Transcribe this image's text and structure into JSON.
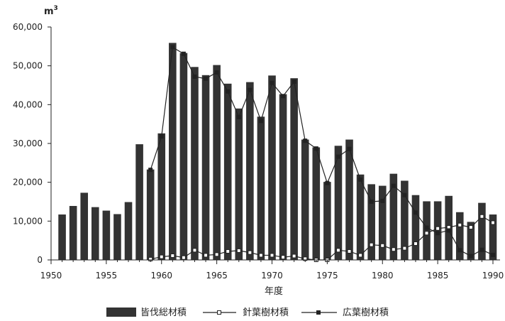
{
  "chart_data": {
    "type": "bar",
    "unit_label": "m",
    "unit_superscript": "3",
    "xlabel": "年度",
    "ylabel": "",
    "xlim": [
      1950,
      1990
    ],
    "ylim": [
      0,
      60000
    ],
    "x_ticks": [
      1950,
      1955,
      1960,
      1965,
      1970,
      1975,
      1980,
      1985,
      1990
    ],
    "y_ticks": [
      0,
      10000,
      20000,
      30000,
      40000,
      50000,
      60000
    ],
    "y_tick_labels": [
      "0",
      "10,000",
      "20,000",
      "30,000",
      "40,000",
      "50,000",
      "60,000"
    ],
    "legend_position": "bottom",
    "colors": {
      "bar": "#333333",
      "line": "#222222",
      "open_marker_fill": "#ffffff",
      "filled_marker_fill": "#222222"
    },
    "series": [
      {
        "name": "皆伐総材積",
        "kind": "bar",
        "x": [
          1951,
          1952,
          1953,
          1954,
          1955,
          1956,
          1957,
          1958,
          1959,
          1960,
          1961,
          1962,
          1963,
          1964,
          1965,
          1966,
          1967,
          1968,
          1969,
          1970,
          1971,
          1972,
          1973,
          1974,
          1975,
          1976,
          1977,
          1978,
          1979,
          1980,
          1981,
          1982,
          1983,
          1984,
          1985,
          1986,
          1987,
          1988,
          1989,
          1990
        ],
        "values": [
          11700,
          13900,
          17300,
          13600,
          12700,
          11800,
          14900,
          29800,
          23300,
          32600,
          55900,
          53300,
          49700,
          47600,
          50200,
          45400,
          39000,
          45800,
          36900,
          47500,
          42700,
          46800,
          31000,
          29000,
          20100,
          29400,
          31000,
          22000,
          19500,
          19100,
          22200,
          20400,
          16700,
          15100,
          15100,
          16500,
          12300,
          9800,
          14700,
          11700
        ]
      },
      {
        "name": "針葉樹材積",
        "kind": "line",
        "marker": "open-square",
        "x": [
          1959,
          1960,
          1961,
          1962,
          1963,
          1964,
          1965,
          1966,
          1967,
          1968,
          1969,
          1970,
          1971,
          1972,
          1973,
          1974,
          1975,
          1976,
          1977,
          1978,
          1979,
          1980,
          1981,
          1982,
          1983,
          1984,
          1985,
          1986,
          1987,
          1988,
          1989,
          1990
        ],
        "values": [
          200,
          800,
          1100,
          600,
          2500,
          1200,
          1400,
          2200,
          2400,
          1900,
          1200,
          1200,
          700,
          1000,
          300,
          0,
          0,
          2500,
          2200,
          1200,
          3900,
          3700,
          2700,
          3000,
          4200,
          6900,
          8100,
          8400,
          9000,
          8400,
          11200,
          9600
        ]
      },
      {
        "name": "広葉樹材積",
        "kind": "line",
        "marker": "filled-square",
        "x": [
          1959,
          1960,
          1961,
          1962,
          1963,
          1964,
          1965,
          1966,
          1967,
          1968,
          1969,
          1970,
          1971,
          1972,
          1973,
          1974,
          1975,
          1976,
          1977,
          1978,
          1979,
          1980,
          1981,
          1982,
          1983,
          1984,
          1985,
          1986,
          1987,
          1988,
          1989,
          1990
        ],
        "values": [
          23200,
          31800,
          54800,
          53100,
          47200,
          46700,
          48300,
          43400,
          36800,
          43800,
          35800,
          45600,
          42200,
          45900,
          30700,
          28700,
          19800,
          26600,
          28600,
          20700,
          15000,
          15200,
          19100,
          16700,
          12200,
          8300,
          6900,
          7600,
          2500,
          1000,
          2600,
          1300
        ]
      }
    ]
  }
}
